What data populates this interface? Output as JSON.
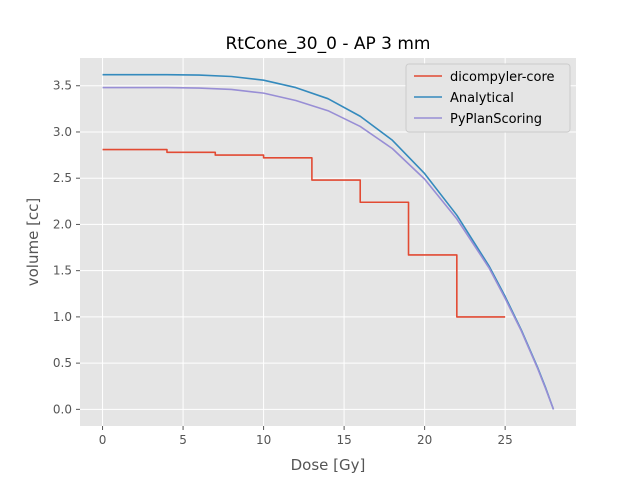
{
  "chart_data": {
    "type": "line",
    "title": "RtCone_30_0 - AP 3 mm",
    "xlabel": "Dose [Gy]",
    "ylabel": "volume [cc]",
    "xlim": [
      -1.4,
      29.4
    ],
    "ylim": [
      -0.18,
      3.8
    ],
    "xticks": [
      0,
      5,
      10,
      15,
      20,
      25
    ],
    "yticks": [
      0.0,
      0.5,
      1.0,
      1.5,
      2.0,
      2.5,
      3.0,
      3.5
    ],
    "xtick_labels": [
      "0",
      "5",
      "10",
      "15",
      "20",
      "25"
    ],
    "ytick_labels": [
      "0.0",
      "0.5",
      "1.0",
      "1.5",
      "2.0",
      "2.5",
      "3.0",
      "3.5"
    ],
    "grid": true,
    "legend_position": "top-right",
    "series": [
      {
        "name": "dicompyler-core",
        "color": "#E24A33",
        "step": true,
        "x": [
          0,
          4,
          7,
          10,
          13,
          16,
          19,
          22,
          25
        ],
        "y": [
          2.81,
          2.78,
          2.75,
          2.72,
          2.48,
          2.24,
          1.67,
          1.0,
          1.0
        ]
      },
      {
        "name": "Analytical",
        "color": "#348ABD",
        "step": false,
        "x": [
          0,
          2,
          4,
          6,
          8,
          10,
          12,
          14,
          16,
          18,
          20,
          22,
          24,
          25,
          26,
          27,
          27.5,
          28
        ],
        "y": [
          3.62,
          3.62,
          3.62,
          3.615,
          3.6,
          3.56,
          3.48,
          3.36,
          3.17,
          2.91,
          2.55,
          2.1,
          1.55,
          1.22,
          0.86,
          0.46,
          0.24,
          0.0
        ]
      },
      {
        "name": "PyPlanScoring",
        "color": "#988ED5",
        "step": false,
        "x": [
          0,
          2,
          4,
          6,
          8,
          10,
          12,
          14,
          16,
          18,
          20,
          22,
          24,
          25,
          26,
          27,
          27.5,
          28
        ],
        "y": [
          3.48,
          3.48,
          3.48,
          3.475,
          3.46,
          3.42,
          3.34,
          3.23,
          3.06,
          2.82,
          2.49,
          2.06,
          1.53,
          1.2,
          0.85,
          0.45,
          0.23,
          0.0
        ]
      }
    ]
  }
}
